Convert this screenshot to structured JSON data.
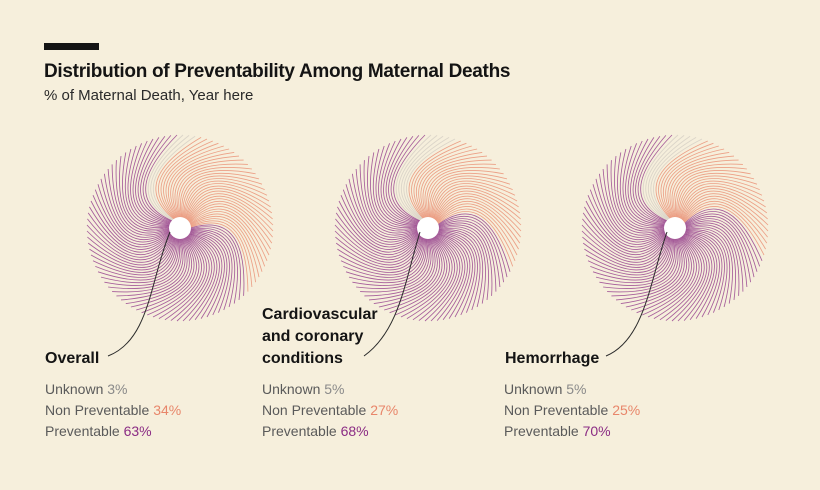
{
  "header": {
    "title": "Distribution of Preventability Among Maternal Deaths",
    "subtitle": "% of Maternal Death, Year here"
  },
  "colors": {
    "background": "#f6efdc",
    "unknown": "#d8d2c6",
    "non_preventable": "#e8866a",
    "preventable": "#8b2c84"
  },
  "chart_data": [
    {
      "type": "pie",
      "title": "Overall",
      "categories": [
        "Unknown",
        "Non Preventable",
        "Preventable"
      ],
      "values": [
        3,
        34,
        63
      ],
      "labels": [
        "3%",
        "34%",
        "63%"
      ]
    },
    {
      "type": "pie",
      "title": "Cardiovascular and coronary conditions",
      "title_lines": [
        "Cardiovascular",
        "and coronary",
        "conditions"
      ],
      "categories": [
        "Unknown",
        "Non Preventable",
        "Preventable"
      ],
      "values": [
        5,
        27,
        68
      ],
      "labels": [
        "5%",
        "27%",
        "68%"
      ]
    },
    {
      "type": "pie",
      "title": "Hemorrhage",
      "categories": [
        "Unknown",
        "Non Preventable",
        "Preventable"
      ],
      "values": [
        5,
        25,
        70
      ],
      "labels": [
        "5%",
        "25%",
        "70%"
      ]
    }
  ]
}
